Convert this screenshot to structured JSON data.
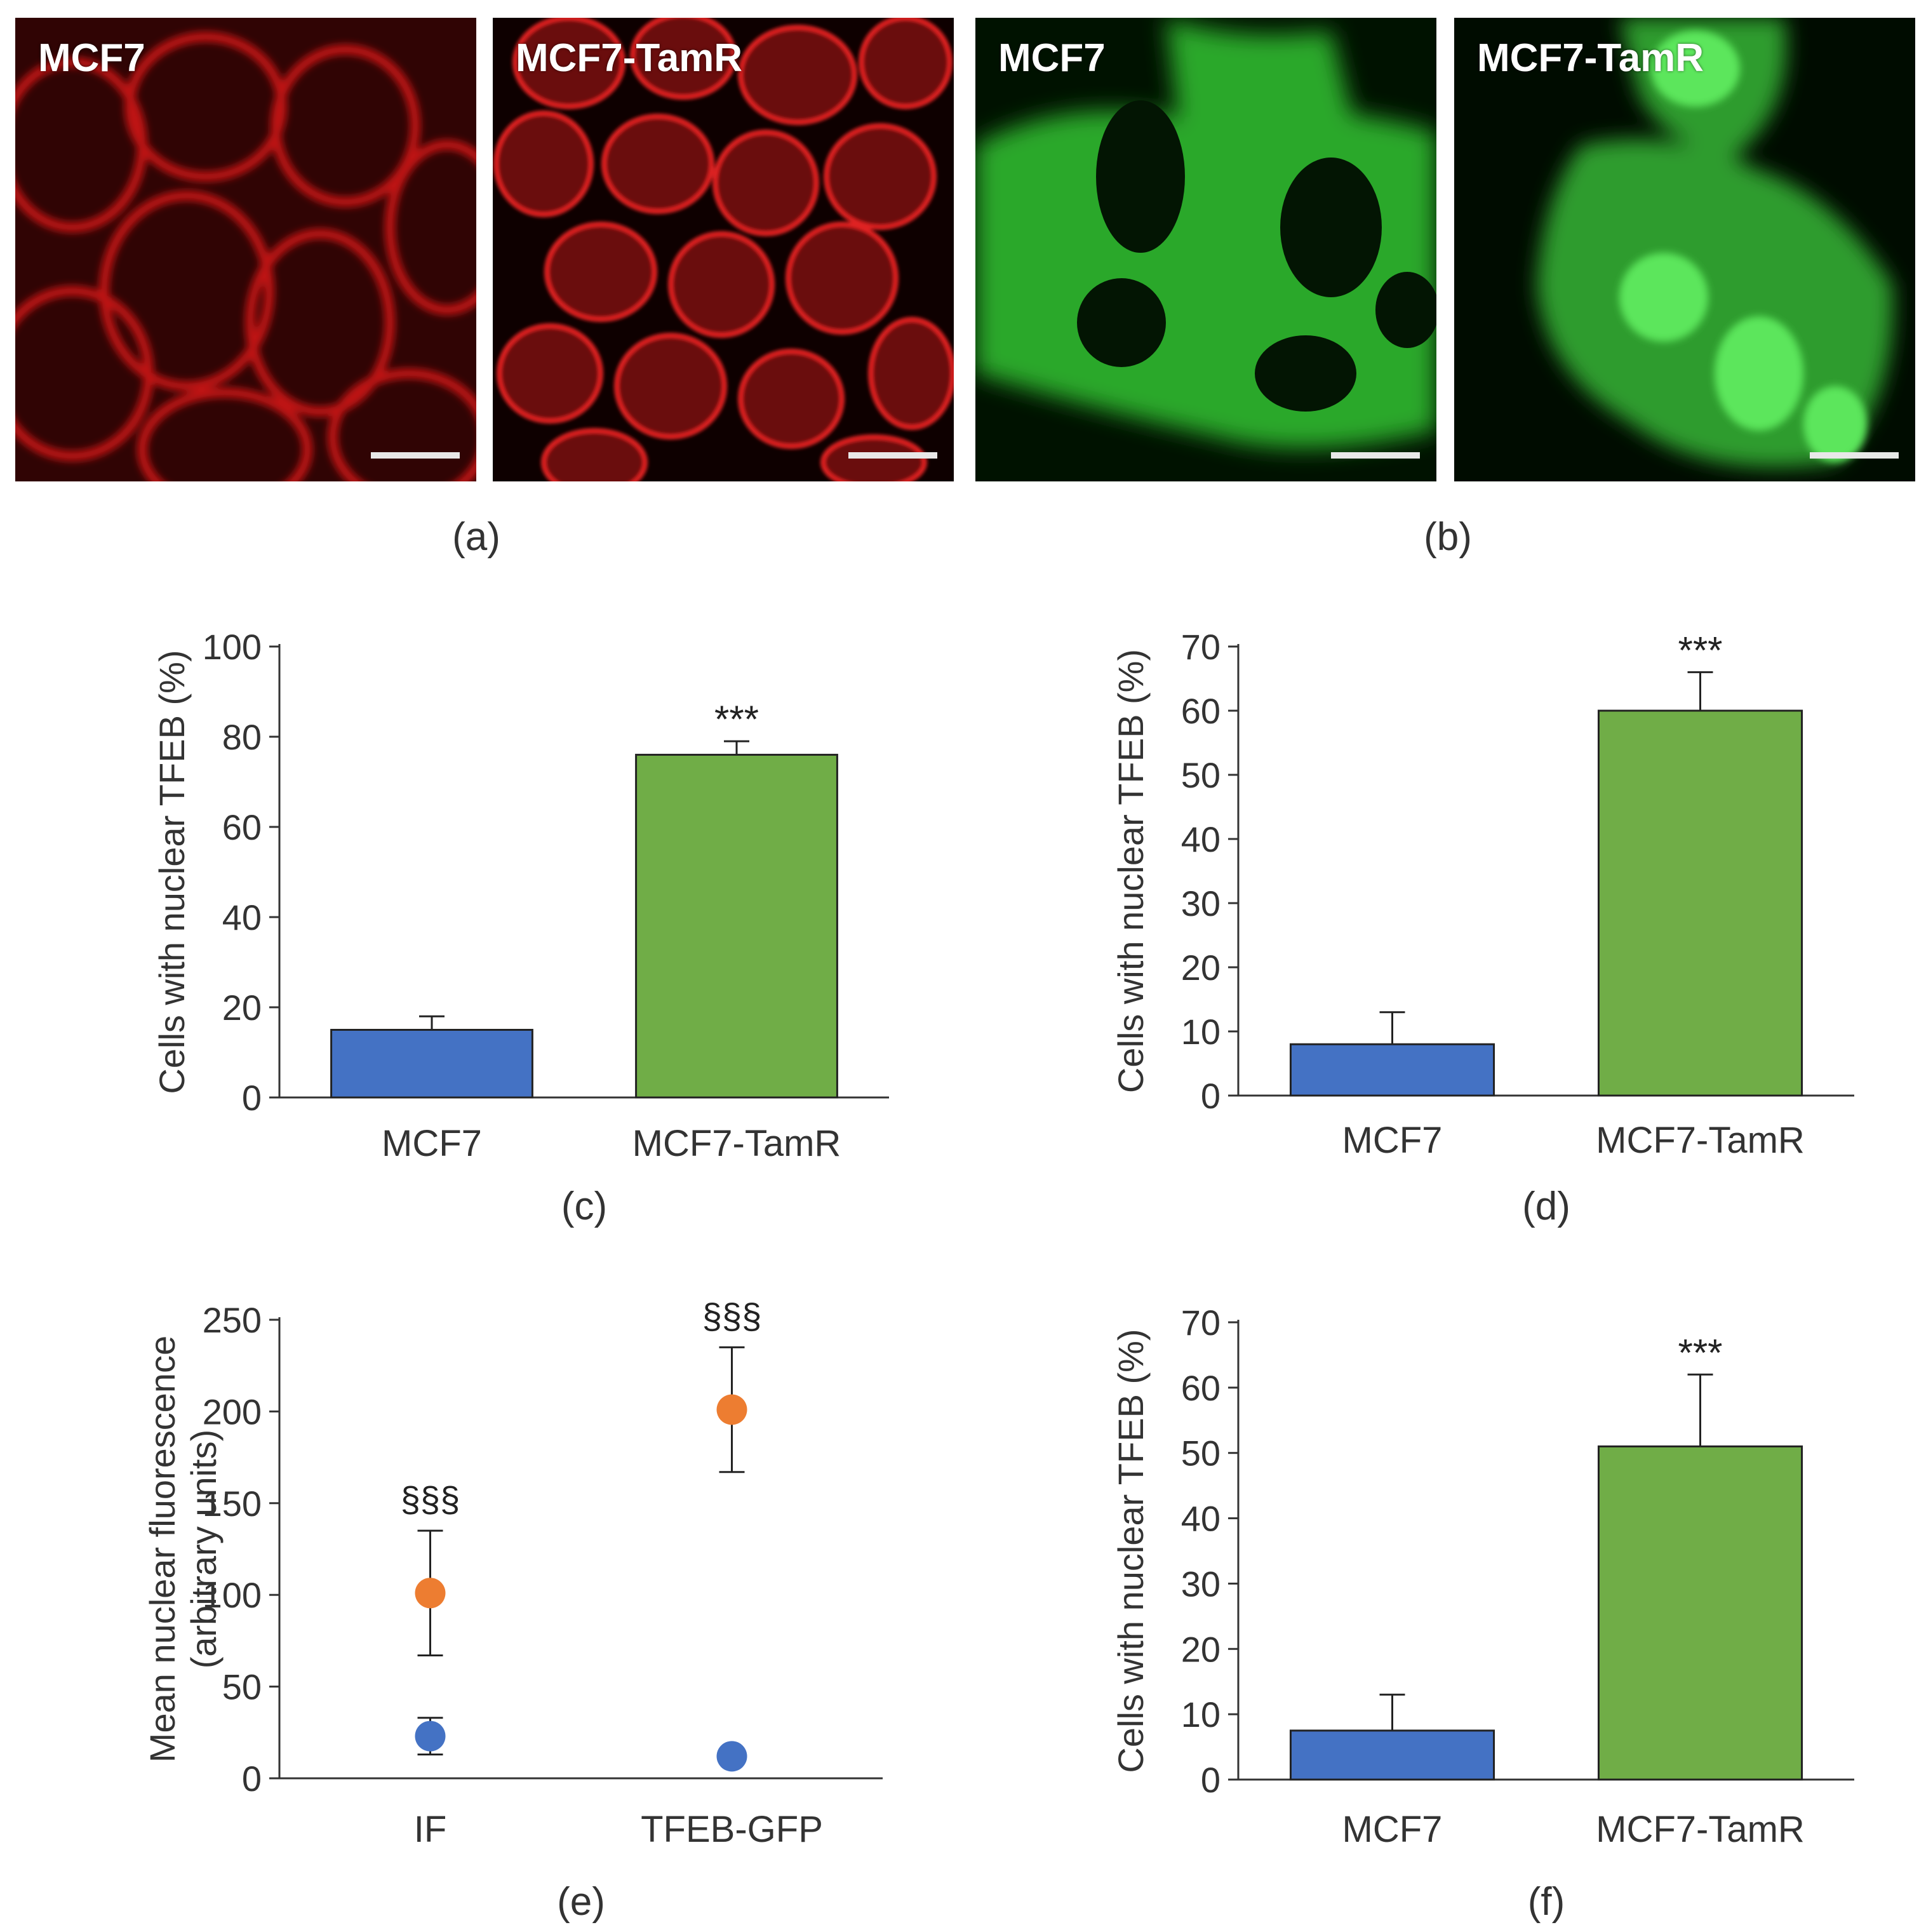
{
  "images": {
    "a_left_label": "MCF7",
    "a_right_label": "MCF7-TamR",
    "b_left_label": "MCF7",
    "b_right_label": "MCF7-TamR",
    "caption_a": "(a)",
    "caption_b": "(b)",
    "red_color": "#d01818",
    "green_color": "#2ec82e"
  },
  "chart_data": [
    {
      "id": "c",
      "type": "bar",
      "caption": "(c)",
      "categories": [
        "MCF7",
        "MCF7-TamR"
      ],
      "values": [
        15,
        76
      ],
      "errors": [
        3,
        3
      ],
      "colors": [
        "#4472c4",
        "#70ad47"
      ],
      "annotations": [
        "",
        "***"
      ],
      "ylabel": "Cells with nuclear TFEB (%)",
      "ylim": [
        0,
        100
      ],
      "yticks": [
        0,
        20,
        40,
        60,
        80,
        100
      ]
    },
    {
      "id": "d",
      "type": "bar",
      "caption": "(d)",
      "categories": [
        "MCF7",
        "MCF7-TamR"
      ],
      "values": [
        8,
        60
      ],
      "errors": [
        5,
        6
      ],
      "colors": [
        "#4472c4",
        "#70ad47"
      ],
      "annotations": [
        "",
        "***"
      ],
      "ylabel": "Cells with nuclear TFEB (%)",
      "ylim": [
        0,
        70
      ],
      "yticks": [
        0,
        10,
        20,
        30,
        40,
        50,
        60,
        70
      ]
    },
    {
      "id": "e",
      "type": "scatter",
      "caption": "(e)",
      "categories": [
        "IF",
        "TFEB-GFP"
      ],
      "series": [
        {
          "color": "#4472c4",
          "values": [
            23,
            12
          ],
          "errors": [
            10,
            0
          ]
        },
        {
          "color": "#ed7d31",
          "values": [
            101,
            201
          ],
          "errors": [
            34,
            34
          ]
        }
      ],
      "annotations": [
        "§§§",
        "§§§"
      ],
      "ylabel": "Mean nuclear fluorescence",
      "ylabel2": "(arbitrary units)",
      "ylim": [
        0,
        250
      ],
      "yticks": [
        0,
        50,
        100,
        150,
        200,
        250
      ]
    },
    {
      "id": "f",
      "type": "bar",
      "caption": "(f)",
      "categories": [
        "MCF7",
        "MCF7-TamR"
      ],
      "values": [
        7.5,
        51
      ],
      "errors": [
        5.5,
        11
      ],
      "colors": [
        "#4472c4",
        "#70ad47"
      ],
      "annotations": [
        "",
        "***"
      ],
      "ylabel": "Cells with nuclear TFEB (%)",
      "ylim": [
        0,
        70
      ],
      "yticks": [
        0,
        10,
        20,
        30,
        40,
        50,
        60,
        70
      ]
    }
  ]
}
